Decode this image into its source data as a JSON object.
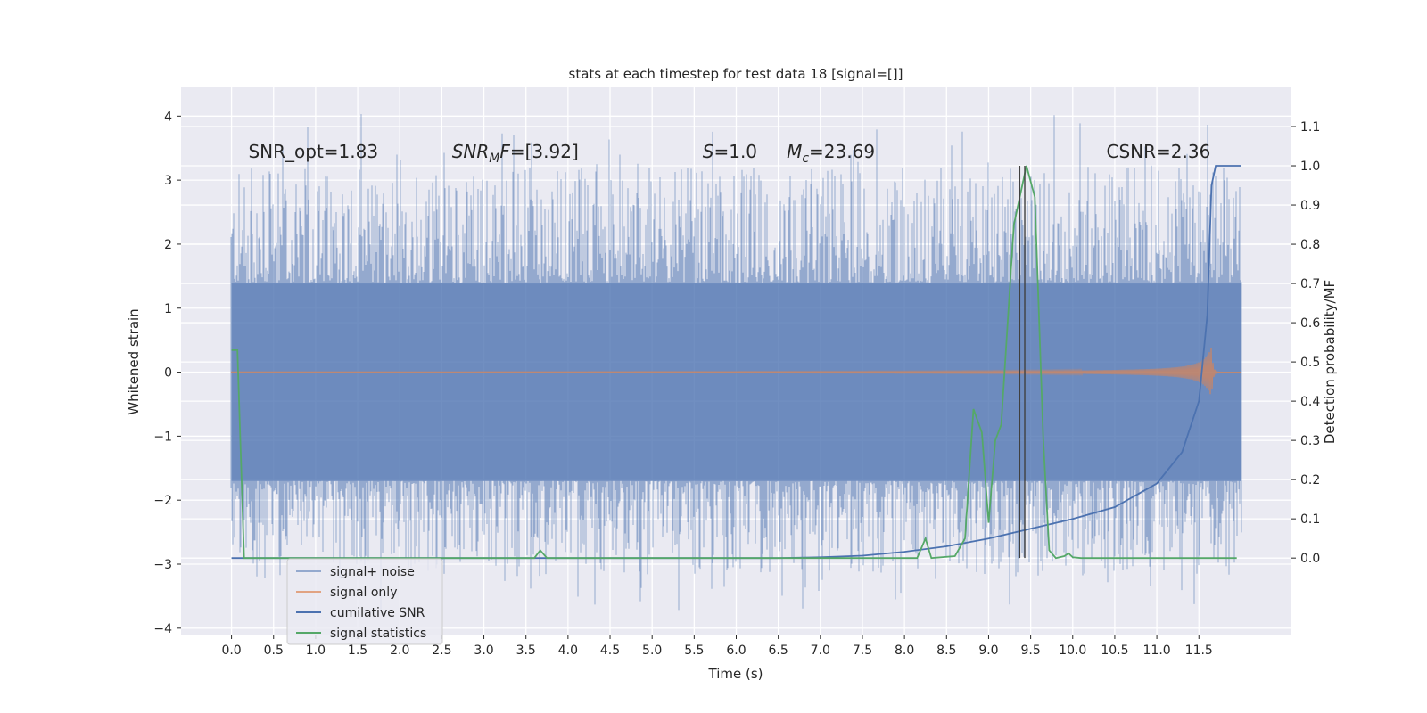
{
  "chart_data": {
    "type": "line",
    "title": "stats at each timestep for test data 18 [signal=[]]",
    "xlabel": "Time (s)",
    "ylabel_left": "Whitened strain",
    "ylabel_right": "Detection probability/MF",
    "xlim": [
      -0.6,
      12.6
    ],
    "ylim_left": [
      -4.1,
      4.45
    ],
    "ylim_right": [
      -0.195,
      1.2
    ],
    "x_ticks": [
      0.0,
      0.5,
      1.0,
      1.5,
      2.0,
      2.5,
      3.0,
      3.5,
      4.0,
      4.5,
      5.0,
      5.5,
      6.0,
      6.5,
      7.0,
      7.5,
      8.0,
      8.5,
      9.0,
      9.5,
      10.0,
      10.5,
      11.0,
      11.5
    ],
    "x_tick_labels": [
      "0.0",
      "0.5",
      "1.0",
      "1.5",
      "2.0",
      "2.5",
      "3.0",
      "3.5",
      "4.0",
      "4.5",
      "5.0",
      "5.5",
      "6.0",
      "6.5",
      "7.0",
      "7.5",
      "8.0",
      "8.5",
      "9.0",
      "9.5",
      "10.0",
      "10.5",
      "11.0",
      "11.5"
    ],
    "y_left_ticks": [
      -4,
      -3,
      -2,
      -1,
      0,
      1,
      2,
      3,
      4
    ],
    "y_left_tick_labels": [
      "−4",
      "−3",
      "−2",
      "−1",
      "0",
      "1",
      "2",
      "3",
      "4"
    ],
    "y_right_ticks": [
      0.0,
      0.1,
      0.2,
      0.3,
      0.4,
      0.5,
      0.6,
      0.7,
      0.8,
      0.9,
      1.0,
      1.1
    ],
    "y_right_tick_labels": [
      "0.0",
      "0.1",
      "0.2",
      "0.3",
      "0.4",
      "0.5",
      "0.6",
      "0.7",
      "0.8",
      "0.9",
      "1.0",
      "1.1"
    ],
    "grid": true,
    "legend_position": "lower-left",
    "series": [
      {
        "name": "signal+ noise",
        "color": "#4c72b0",
        "axis": "left",
        "style": "dense-noise",
        "x_range": [
          0.0,
          12.0
        ],
        "envelope_core": [
          -1.7,
          1.4
        ],
        "max_value": 4.1,
        "min_value": -3.75
      },
      {
        "name": "signal only",
        "color": "#dd8452",
        "axis": "left",
        "style": "chirp",
        "x_range": [
          0.0,
          12.0
        ],
        "peak_amplitude": 0.4,
        "merger_time": 11.65
      },
      {
        "name": "cumilative SNR",
        "color": "#4c72b0",
        "axis": "right",
        "x": [
          0.0,
          6.5,
          7.0,
          7.5,
          8.0,
          8.5,
          9.0,
          9.5,
          10.0,
          10.5,
          11.0,
          11.3,
          11.5,
          11.6,
          11.65,
          11.7,
          12.0
        ],
        "values": [
          0.0,
          0.0,
          0.002,
          0.006,
          0.016,
          0.03,
          0.05,
          0.075,
          0.1,
          0.13,
          0.19,
          0.27,
          0.4,
          0.62,
          0.95,
          1.0,
          1.0
        ]
      },
      {
        "name": "signal statistics",
        "color": "#55a868",
        "axis": "right",
        "x": [
          0.0,
          0.07,
          0.12,
          0.15,
          3.6,
          3.67,
          3.75,
          8.15,
          8.25,
          8.32,
          8.6,
          8.72,
          8.82,
          8.92,
          9.0,
          9.08,
          9.15,
          9.3,
          9.45,
          9.55,
          9.65,
          9.72,
          9.8,
          9.9,
          9.95,
          10.0,
          10.1,
          11.95
        ],
        "values": [
          0.53,
          0.53,
          0.2,
          0.0,
          0.0,
          0.02,
          0.0,
          0.0,
          0.05,
          0.0,
          0.005,
          0.05,
          0.38,
          0.32,
          0.09,
          0.3,
          0.34,
          0.85,
          1.0,
          0.92,
          0.3,
          0.02,
          0.0,
          0.005,
          0.012,
          0.002,
          0.0,
          0.0
        ]
      }
    ],
    "vertical_lines": [
      {
        "x": 9.37,
        "y_range": [
          0.0,
          1.0
        ],
        "color": "#404040"
      },
      {
        "x": 9.43,
        "y_range": [
          0.0,
          1.0
        ],
        "color": "#404040"
      }
    ],
    "annotations": [
      {
        "text": "SNR_opt=1.83",
        "x": 0.2,
        "y": 3.35
      },
      {
        "text": "=[3.92]",
        "math": "SNR_MF",
        "x": 2.62,
        "y": 3.35
      },
      {
        "text": "=1.0",
        "math": "S",
        "x": 5.6,
        "y": 3.35
      },
      {
        "text": "=23.69",
        "math": "M_c",
        "x": 6.6,
        "y": 3.35
      },
      {
        "text": "CSNR=2.36",
        "x": 10.4,
        "y": 3.35
      }
    ]
  }
}
